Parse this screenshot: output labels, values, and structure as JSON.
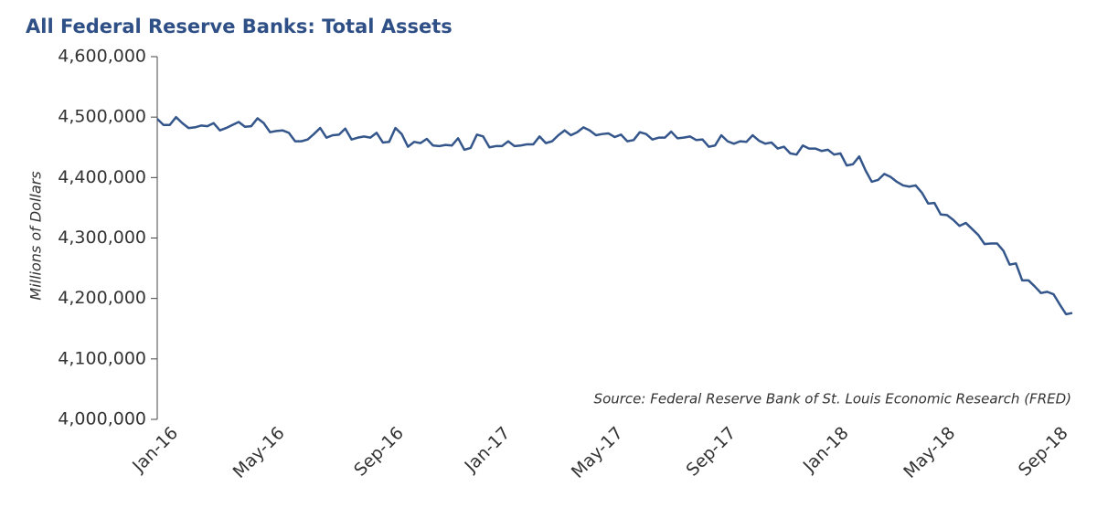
{
  "chart_data": {
    "type": "line",
    "title": "All Federal Reserve Banks: Total Assets",
    "y_label": "Millions of Dollars",
    "source": "Source: Federal Reserve Bank of St. Louis Economic Research (FRED)",
    "categories": [
      null,
      null,
      "Jan-16",
      null,
      null,
      null,
      null,
      null,
      null,
      null,
      null,
      null,
      null,
      null,
      null,
      null,
      null,
      null,
      null,
      "May-16",
      null,
      null,
      null,
      null,
      null,
      null,
      null,
      null,
      null,
      null,
      null,
      null,
      null,
      null,
      null,
      null,
      null,
      null,
      "Sep-16",
      null,
      null,
      null,
      null,
      null,
      null,
      null,
      null,
      null,
      null,
      null,
      null,
      null,
      null,
      null,
      null,
      "Jan-17",
      null,
      null,
      null,
      null,
      null,
      null,
      null,
      null,
      null,
      null,
      null,
      null,
      null,
      null,
      null,
      null,
      null,
      "May-17",
      null,
      null,
      null,
      null,
      null,
      null,
      null,
      null,
      null,
      null,
      null,
      null,
      null,
      null,
      null,
      null,
      null,
      "Sep-17",
      null,
      null,
      null,
      null,
      null,
      null,
      null,
      null,
      null,
      null,
      null,
      null,
      null,
      null,
      null,
      null,
      null,
      "Jan-18",
      null,
      null,
      null,
      null,
      null,
      null,
      null,
      null,
      null,
      null,
      null,
      null,
      null,
      null,
      null,
      null,
      "May-18",
      null,
      null,
      null,
      null,
      null,
      null,
      null,
      null,
      null,
      null,
      null,
      null,
      null,
      null,
      null,
      null,
      null,
      "Sep-18",
      null,
      null
    ],
    "series": [
      {
        "name": "Total Assets",
        "color": "#34568b",
        "values": [
          4497000,
          4487000,
          4487000,
          4500000,
          4490000,
          4482000,
          4483000,
          4486000,
          4485000,
          4490000,
          4478000,
          4482000,
          4487000,
          4492000,
          4484000,
          4485000,
          4498000,
          4490000,
          4475000,
          4477000,
          4478000,
          4474000,
          4460000,
          4460000,
          4463000,
          4472000,
          4482000,
          4466000,
          4470000,
          4471000,
          4481000,
          4463000,
          4466000,
          4468000,
          4466000,
          4474000,
          4458000,
          4459000,
          4482000,
          4472000,
          4451000,
          4459000,
          4457000,
          4464000,
          4453000,
          4452000,
          4454000,
          4453000,
          4465000,
          4446000,
          4449000,
          4471000,
          4468000,
          4450000,
          4452000,
          4452000,
          4460000,
          4452000,
          4453000,
          4455000,
          4455000,
          4468000,
          4457000,
          4460000,
          4470000,
          4478000,
          4470000,
          4475000,
          4483000,
          4478000,
          4470000,
          4472000,
          4473000,
          4467000,
          4471000,
          4460000,
          4462000,
          4475000,
          4472000,
          4463000,
          4466000,
          4466000,
          4476000,
          4465000,
          4466000,
          4468000,
          4462000,
          4463000,
          4451000,
          4453000,
          4470000,
          4460000,
          4456000,
          4460000,
          4459000,
          4470000,
          4461000,
          4456000,
          4458000,
          4448000,
          4451000,
          4440000,
          4438000,
          4453000,
          4448000,
          4448000,
          4444000,
          4446000,
          4438000,
          4440000,
          4420000,
          4422000,
          4435000,
          4412000,
          4393000,
          4396000,
          4406000,
          4401000,
          4393000,
          4387000,
          4385000,
          4387000,
          4375000,
          4357000,
          4358000,
          4339000,
          4338000,
          4330000,
          4320000,
          4325000,
          4315000,
          4305000,
          4290000,
          4291000,
          4291000,
          4279000,
          4256000,
          4258000,
          4230000,
          4230000,
          4220000,
          4209000,
          4211000,
          4207000,
          4190000,
          4174000,
          4176000
        ]
      }
    ],
    "ylim": [
      4000000,
      4600000
    ],
    "yticks": [
      {
        "value": 4000000,
        "label": "4,000,000"
      },
      {
        "value": 4100000,
        "label": "4,100,000"
      },
      {
        "value": 4200000,
        "label": "4,200,000"
      },
      {
        "value": 4300000,
        "label": "4,300,000"
      },
      {
        "value": 4400000,
        "label": "4,400,000"
      },
      {
        "value": 4500000,
        "label": "4,500,000"
      },
      {
        "value": 4600000,
        "label": "4,600,000"
      }
    ],
    "grid": false
  }
}
